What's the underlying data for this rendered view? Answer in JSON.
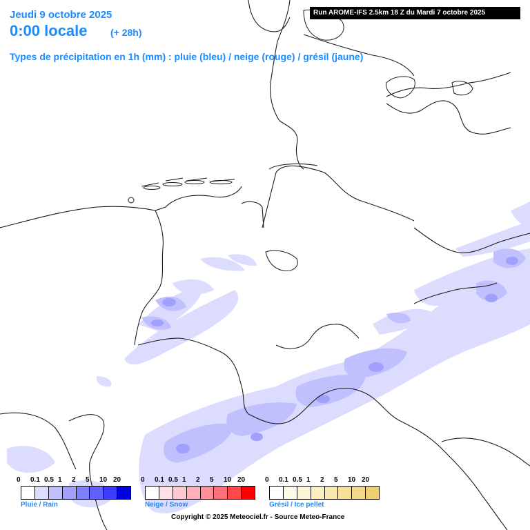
{
  "header": {
    "date": "Jeudi 9 octobre 2025",
    "time": "0:00 locale",
    "lead": "(+ 28h)",
    "types": "Types de précipitation en 1h (mm) : pluie (bleu) / neige (rouge) / grésil (jaune)",
    "run": "Run AROME-IFS 2.5km 18 Z du Mardi 7 octobre 2025"
  },
  "legends": [
    {
      "name": "Pluie / Rain",
      "ticks": [
        "0",
        "0.1",
        "0.5",
        "1",
        "2",
        "5",
        "10",
        "20"
      ],
      "colors": [
        "#ffffff",
        "#dcdcff",
        "#c0c0ff",
        "#a0a0ff",
        "#8080ff",
        "#6060ff",
        "#3c3cff",
        "#0000e0"
      ]
    },
    {
      "name": "Neige / Snow",
      "ticks": [
        "0",
        "0.1",
        "0.5",
        "1",
        "2",
        "5",
        "10",
        "20"
      ],
      "colors": [
        "#ffffff",
        "#ffe0e6",
        "#ffc8d0",
        "#ffb0b8",
        "#ff9098",
        "#ff7078",
        "#ff4848",
        "#ff0000"
      ]
    },
    {
      "name": "Grésil / Ice pellet",
      "ticks": [
        "0",
        "0.1",
        "0.5",
        "1",
        "2",
        "5",
        "10",
        "20"
      ],
      "colors": [
        "#ffffff",
        "#fffbea",
        "#fdf5d6",
        "#fbefc4",
        "#f9e8b0",
        "#f6e09a",
        "#f2d888",
        "#eed070"
      ]
    }
  ],
  "copyright": "Copyright © 2025 Meteociel.fr - Source Meteo-France",
  "colors": {
    "title": "#1a8cff",
    "light_rain": "#dcdcff",
    "moderate_rain": "#c0c0ff",
    "heavier_rain": "#a0a0ff"
  }
}
